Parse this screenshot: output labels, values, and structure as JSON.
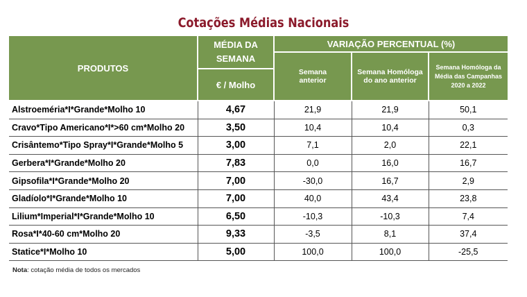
{
  "title": "Cotações Médias Nacionais",
  "headers": {
    "produtos": "PRODUTOS",
    "media": "MÉDIA DA SEMANA",
    "unit": "€ / Molho",
    "variacao": "VARIAÇÃO PERCENTUAL (%)",
    "sem_ant": "Semana anterior",
    "sem_hom": "Semana Homóloga do ano anterior",
    "sem_camp": "Semana Homóloga da Média das Campanhas 2020 a 2022"
  },
  "rows": [
    {
      "produto": "Alstroeméria*I*Grande*Molho 10",
      "media": "4,67",
      "v1": "21,9",
      "v2": "21,9",
      "v3": "50,1"
    },
    {
      "produto": "Cravo*Tipo Americano*I*>60 cm*Molho 20",
      "media": "3,50",
      "v1": "10,4",
      "v2": "10,4",
      "v3": "0,3"
    },
    {
      "produto": "Crisântemo*Tipo Spray*I*Grande*Molho 5",
      "media": "3,00",
      "v1": "7,1",
      "v2": "2,0",
      "v3": "22,1"
    },
    {
      "produto": "Gerbera*I*Grande*Molho 20",
      "media": "7,83",
      "v1": "0,0",
      "v2": "16,0",
      "v3": "16,7"
    },
    {
      "produto": "Gipsofila*I*Grande*Molho 20",
      "media": "7,00",
      "v1": "-30,0",
      "v2": "16,7",
      "v3": "2,9"
    },
    {
      "produto": "Gladíolo*I*Grande*Molho 10",
      "media": "7,00",
      "v1": "40,0",
      "v2": "43,4",
      "v3": "23,8"
    },
    {
      "produto": "Lilium*Imperial*I*Grande*Molho 10",
      "media": "6,50",
      "v1": "-10,3",
      "v2": "-10,3",
      "v3": "7,4"
    },
    {
      "produto": "Rosa*I*40-60 cm*Molho 20",
      "media": "9,33",
      "v1": "-3,5",
      "v2": "8,1",
      "v3": "37,4"
    },
    {
      "produto": "Statice*I*Molho 10",
      "media": "5,00",
      "v1": "100,0",
      "v2": "100,0",
      "v3": "-25,5"
    }
  ],
  "note": {
    "label": "Nota",
    "text": ": cotação média de todos os mercados"
  }
}
